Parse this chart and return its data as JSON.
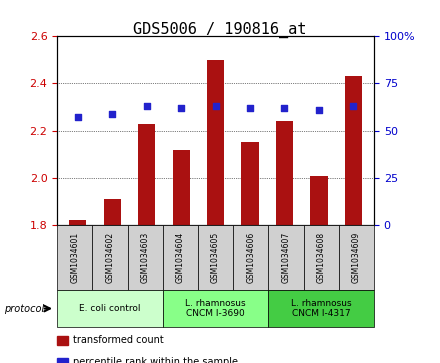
{
  "title": "GDS5006 / 190816_at",
  "samples": [
    "GSM1034601",
    "GSM1034602",
    "GSM1034603",
    "GSM1034604",
    "GSM1034605",
    "GSM1034606",
    "GSM1034607",
    "GSM1034608",
    "GSM1034609"
  ],
  "transformed_count": [
    1.82,
    1.91,
    2.23,
    2.12,
    2.5,
    2.15,
    2.24,
    2.01,
    2.43
  ],
  "percentile_rank": [
    57,
    59,
    63,
    62,
    63,
    62,
    62,
    61,
    63
  ],
  "bar_color": "#aa1111",
  "dot_color": "#2222cc",
  "ylim_left": [
    1.8,
    2.6
  ],
  "ylim_right": [
    0,
    100
  ],
  "yticks_left": [
    1.8,
    2.0,
    2.2,
    2.4,
    2.6
  ],
  "yticks_right": [
    0,
    25,
    50,
    75,
    100
  ],
  "groups": [
    {
      "label": "E. coli control",
      "indices": [
        0,
        1,
        2
      ],
      "color": "#ccffcc"
    },
    {
      "label": "L. rhamnosus\nCNCM I-3690",
      "indices": [
        3,
        4,
        5
      ],
      "color": "#88ff88"
    },
    {
      "label": "L. rhamnosus\nCNCM I-4317",
      "indices": [
        6,
        7,
        8
      ],
      "color": "#44cc44"
    }
  ],
  "protocol_label": "protocol",
  "legend_items": [
    {
      "label": "transformed count",
      "color": "#aa1111"
    },
    {
      "label": "percentile rank within the sample",
      "color": "#2222cc"
    }
  ],
  "background_color": "#ffffff",
  "plot_bg": "#ffffff",
  "tick_color_left": "#cc0000",
  "tick_color_right": "#0000cc",
  "grid_color": "#000000",
  "title_fontsize": 11
}
